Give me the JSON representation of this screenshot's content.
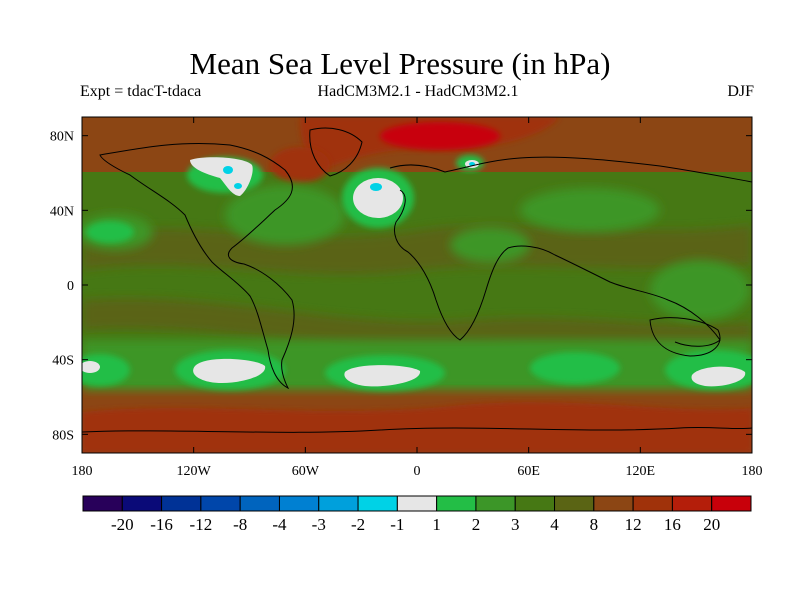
{
  "title": "Mean Sea Level Pressure (in hPa)",
  "subtitle_left": "Expt = tdacT-tdaca",
  "subtitle_center": "HadCM3M2.1 - HadCM3M2.1",
  "subtitle_right": "DJF",
  "map": {
    "projection": "cylindrical-equidistant",
    "lon_range": [
      -180,
      180
    ],
    "lat_range": [
      -90,
      90
    ],
    "y_ticks": [
      {
        "lat": 80,
        "label": "80N"
      },
      {
        "lat": 40,
        "label": "40N"
      },
      {
        "lat": 0,
        "label": "0"
      },
      {
        "lat": -40,
        "label": "40S"
      },
      {
        "lat": -80,
        "label": "80S"
      }
    ],
    "x_ticks": [
      {
        "lon": -180,
        "label": "180"
      },
      {
        "lon": -120,
        "label": "120W"
      },
      {
        "lon": -60,
        "label": "60W"
      },
      {
        "lon": 0,
        "label": "0"
      },
      {
        "lon": 60,
        "label": "60E"
      },
      {
        "lon": 120,
        "label": "120E"
      },
      {
        "lon": 180,
        "label": "180"
      }
    ]
  },
  "colorbar": {
    "levels": [
      "-20",
      "-16",
      "-12",
      "-8",
      "-4",
      "-3",
      "-2",
      "-1",
      "1",
      "2",
      "3",
      "4",
      "8",
      "12",
      "16",
      "20"
    ],
    "colors": [
      "#28005a",
      "#0a0a78",
      "#003296",
      "#0046aa",
      "#0064be",
      "#0080d2",
      "#00a0dc",
      "#00d2e6",
      "#e6e6e6",
      "#23be46",
      "#3c9628",
      "#467814",
      "#5a6414",
      "#8c4614",
      "#a0320a",
      "#b41e0a",
      "#c8000a"
    ]
  },
  "field_colors": {
    "green_light": "#23be46",
    "green": "#3c9628",
    "olive": "#467814",
    "olive_brown": "#5a6414",
    "brown": "#8c4614",
    "red_brown": "#a0320a",
    "red": "#c8000a",
    "white": "#e6e6e6",
    "cyan": "#00d2e6"
  }
}
